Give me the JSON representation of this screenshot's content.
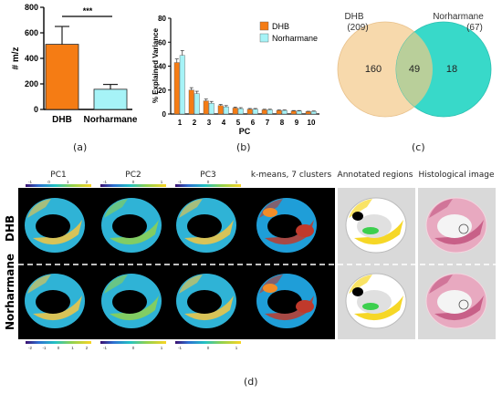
{
  "panel_a": {
    "ylabel": "# m/z",
    "sig": "***",
    "caption": "(a)",
    "yticks": [
      "0",
      "200",
      "400",
      "600",
      "800"
    ]
  },
  "panel_b": {
    "ylabel": "% Explained Variance",
    "xlabel": "PC",
    "caption": "(b)",
    "yticks": [
      "0",
      "20",
      "40",
      "60",
      "80"
    ]
  },
  "panel_c": {
    "caption": "(c)",
    "left_name": "DHB",
    "left_total": "(209)",
    "right_name": "Norharmane",
    "right_total": "(67)",
    "only_left": "160",
    "overlap": "49",
    "only_right": "18",
    "colors": {
      "left": "#f7d9ac",
      "right": "#38d9c9",
      "overlap": "#b9cf9a"
    }
  },
  "panel_d": {
    "caption": "(d)",
    "columns": [
      "PC1",
      "PC2",
      "PC3",
      "k-means, 7 clusters",
      "Annotated regions",
      "Histological image"
    ],
    "rows": [
      "DHB",
      "Norharmane"
    ],
    "colorbar_top": [
      [
        "-1",
        "0",
        "1",
        "2"
      ],
      [
        "-1",
        "0",
        "1"
      ],
      [
        "-1",
        "0",
        "1"
      ]
    ],
    "colorbar_bottom": [
      [
        "-2",
        "-1",
        "0",
        "1",
        "2"
      ],
      [
        "-1",
        "0",
        "1"
      ],
      [
        "-1",
        "0",
        "1"
      ]
    ]
  },
  "chart_data": [
    {
      "type": "bar",
      "categories": [
        "DHB",
        "Norharmane"
      ],
      "values": [
        510,
        158
      ],
      "errors": [
        140,
        38
      ],
      "ylabel": "# m/z",
      "ylim": [
        0,
        800
      ],
      "colors": [
        "#f57c14",
        "#a6f3f7"
      ],
      "annotations": [
        "***"
      ]
    },
    {
      "type": "bar",
      "categories": [
        "1",
        "2",
        "3",
        "4",
        "5",
        "6",
        "7",
        "8",
        "9",
        "10"
      ],
      "xlabel": "PC",
      "ylabel": "% Explained Variance",
      "ylim": [
        0,
        80
      ],
      "legend": "top-right",
      "series": [
        {
          "name": "DHB",
          "color": "#f57c14",
          "values": [
            43,
            20,
            11,
            7,
            5,
            4,
            3.5,
            3,
            2.5,
            2
          ],
          "errors": [
            3,
            2,
            1.5,
            1,
            0.8,
            0.6,
            0.5,
            0.4,
            0.4,
            0.3
          ]
        },
        {
          "name": "Norharmane",
          "color": "#a6f3f7",
          "values": [
            49,
            17,
            9,
            6,
            4.5,
            4,
            3.5,
            3,
            2.5,
            2.2
          ],
          "errors": [
            4,
            2,
            1.5,
            1,
            0.8,
            0.6,
            0.5,
            0.4,
            0.4,
            0.3
          ]
        }
      ]
    }
  ]
}
